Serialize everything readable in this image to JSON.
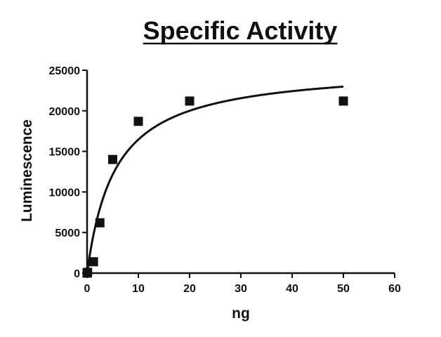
{
  "chart_data": {
    "type": "scatter",
    "title": "Specific Activity",
    "xlabel": "ng",
    "ylabel": "Luminescence",
    "xlim": [
      0,
      60
    ],
    "ylim": [
      0,
      25000
    ],
    "xticks": [
      0,
      10,
      20,
      30,
      40,
      50,
      60
    ],
    "yticks": [
      0,
      5000,
      10000,
      15000,
      20000,
      25000
    ],
    "legend": "none",
    "grid": false,
    "series": [
      {
        "marker": "square",
        "color": "#111111",
        "points": [
          {
            "x": 0,
            "y": 0
          },
          {
            "x": 0.1,
            "y": 100
          },
          {
            "x": 1.25,
            "y": 1400
          },
          {
            "x": 2.5,
            "y": 6200
          },
          {
            "x": 5,
            "y": 14000
          },
          {
            "x": 10,
            "y": 18700
          },
          {
            "x": 20,
            "y": 21200
          },
          {
            "x": 50,
            "y": 21200
          }
        ]
      }
    ],
    "fit": {
      "model": "one-site hyperbola",
      "vmax": 25500,
      "k": 5.5,
      "x_range": [
        0,
        50
      ],
      "color": "#111111"
    }
  }
}
